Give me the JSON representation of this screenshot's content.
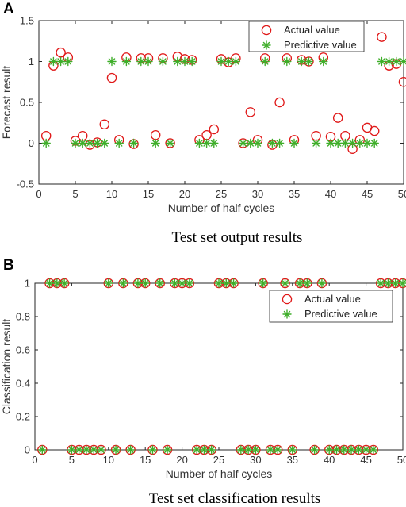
{
  "colors": {
    "actual": "#e01818",
    "predictive": "#3fae2a",
    "axis": "#262626"
  },
  "chart_data": [
    {
      "panel_label": "A",
      "type": "scatter",
      "caption": "Test set output results",
      "xlabel": "Number of half cycles",
      "ylabel": "Forecast result",
      "xlim": [
        0,
        50
      ],
      "ylim": [
        -0.5,
        1.5
      ],
      "xticks": [
        "0",
        "5",
        "10",
        "15",
        "20",
        "25",
        "30",
        "35",
        "40",
        "45",
        "50"
      ],
      "yticks": [
        "-0.5",
        "0",
        "0.5",
        "1",
        "1.5"
      ],
      "legend_position": "top-right",
      "x": [
        1,
        2,
        3,
        4,
        5,
        6,
        7,
        8,
        9,
        10,
        11,
        12,
        13,
        14,
        15,
        16,
        17,
        18,
        19,
        20,
        21,
        22,
        23,
        24,
        25,
        26,
        27,
        28,
        29,
        30,
        31,
        32,
        33,
        34,
        35,
        36,
        37,
        38,
        39,
        40,
        41,
        42,
        43,
        44,
        45,
        46,
        47,
        48,
        49,
        50
      ],
      "series": [
        {
          "name": "Actual value",
          "marker": "circle",
          "values": [
            0.09,
            0.95,
            1.11,
            1.05,
            0.03,
            0.09,
            -0.02,
            0.01,
            0.23,
            0.8,
            0.04,
            1.05,
            -0.01,
            1.04,
            1.04,
            0.1,
            1.04,
            0.0,
            1.06,
            1.03,
            1.02,
            0.04,
            0.1,
            0.17,
            1.03,
            0.99,
            1.04,
            0.0,
            0.38,
            0.04,
            1.04,
            -0.02,
            0.5,
            1.04,
            0.04,
            1.02,
            1.0,
            0.09,
            1.05,
            0.08,
            0.31,
            0.09,
            -0.07,
            0.04,
            0.19,
            0.15,
            1.3,
            0.95,
            0.97,
            0.75
          ]
        },
        {
          "name": "Predictive value",
          "marker": "asterisk",
          "values": [
            0,
            1,
            1,
            1,
            0,
            0,
            0,
            0,
            0,
            1,
            0,
            1,
            0,
            1,
            1,
            0,
            1,
            0,
            1,
            1,
            1,
            0,
            0,
            0,
            1,
            1,
            1,
            0,
            0,
            0,
            1,
            0,
            0,
            1,
            0,
            1,
            1,
            0,
            1,
            0,
            0,
            0,
            0,
            0,
            0,
            0,
            1,
            1,
            1,
            1
          ]
        }
      ]
    },
    {
      "panel_label": "B",
      "type": "scatter",
      "caption": "Test set classification results",
      "xlabel": "Number of half cycles",
      "ylabel": "Classification result",
      "xlim": [
        0,
        50
      ],
      "ylim": [
        0,
        1
      ],
      "xticks": [
        "0",
        "5",
        "10",
        "15",
        "20",
        "25",
        "30",
        "35",
        "40",
        "45",
        "50"
      ],
      "yticks": [
        "0",
        "0.2",
        "0.4",
        "0.6",
        "0.8",
        "1"
      ],
      "legend_position": "top-right",
      "x": [
        1,
        2,
        3,
        4,
        5,
        6,
        7,
        8,
        9,
        10,
        11,
        12,
        13,
        14,
        15,
        16,
        17,
        18,
        19,
        20,
        21,
        22,
        23,
        24,
        25,
        26,
        27,
        28,
        29,
        30,
        31,
        32,
        33,
        34,
        35,
        36,
        37,
        38,
        39,
        40,
        41,
        42,
        43,
        44,
        45,
        46,
        47,
        48,
        49,
        50
      ],
      "series": [
        {
          "name": "Actual value",
          "marker": "circle",
          "values": [
            0,
            1,
            1,
            1,
            0,
            0,
            0,
            0,
            0,
            1,
            0,
            1,
            0,
            1,
            1,
            0,
            1,
            0,
            1,
            1,
            1,
            0,
            0,
            0,
            1,
            1,
            1,
            0,
            0,
            0,
            1,
            0,
            0,
            1,
            0,
            1,
            1,
            0,
            1,
            0,
            0,
            0,
            0,
            0,
            0,
            0,
            1,
            1,
            1,
            1
          ]
        },
        {
          "name": "Predictive value",
          "marker": "asterisk",
          "values": [
            0,
            1,
            1,
            1,
            0,
            0,
            0,
            0,
            0,
            1,
            0,
            1,
            0,
            1,
            1,
            0,
            1,
            0,
            1,
            1,
            1,
            0,
            0,
            0,
            1,
            1,
            1,
            0,
            0,
            0,
            1,
            0,
            0,
            1,
            0,
            1,
            1,
            0,
            1,
            0,
            0,
            0,
            0,
            0,
            0,
            0,
            1,
            1,
            1,
            1
          ]
        }
      ]
    }
  ]
}
